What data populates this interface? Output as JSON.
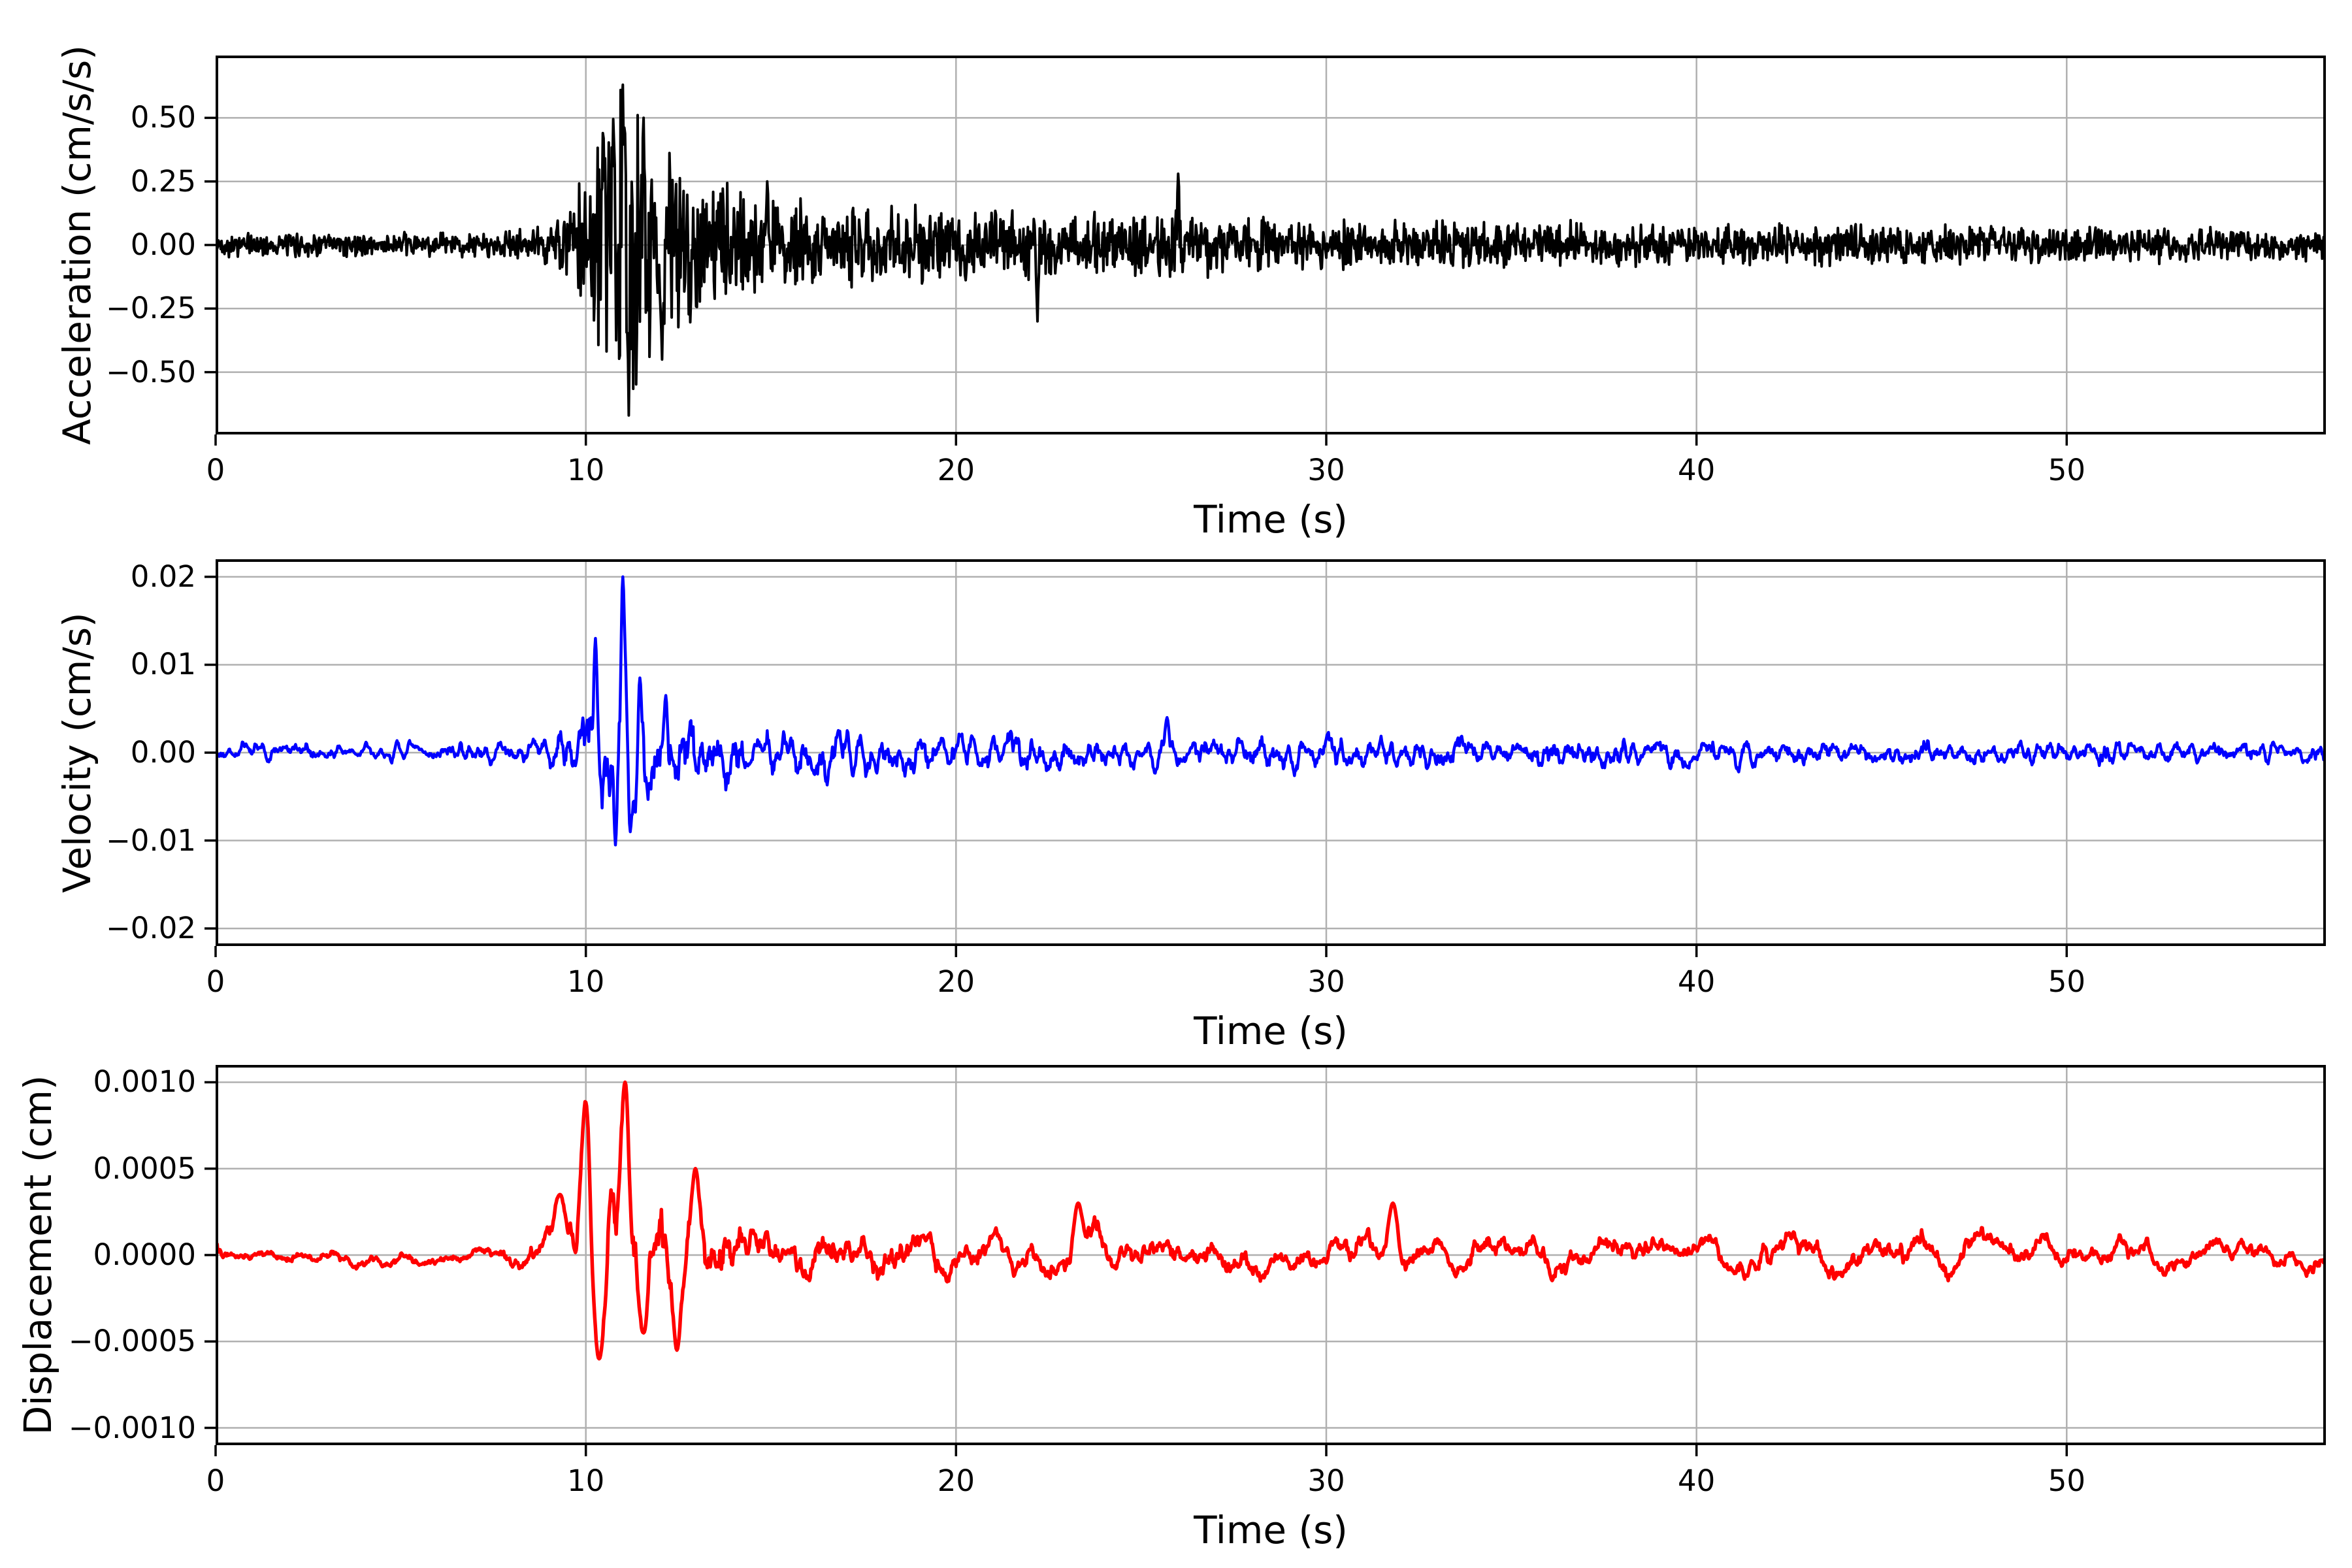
{
  "figure": {
    "background_color": "#ffffff",
    "grid_color": "#b0b0b0",
    "spine_color": "#000000",
    "text_color": "#000000",
    "grid_on": true
  },
  "chart_data": [
    {
      "type": "line",
      "series_name": "acceleration",
      "color": "#000000",
      "xlabel": "Time (s)",
      "ylabel": "Acceleration (cm/s/s)",
      "xlim": [
        0,
        57
      ],
      "ylim": [
        -0.745,
        0.745
      ],
      "xticks": [
        0,
        10,
        20,
        30,
        40,
        50
      ],
      "xtick_labels": [
        "0",
        "10",
        "20",
        "30",
        "40",
        "50"
      ],
      "yticks": [
        0.5,
        0.25,
        0.0,
        -0.25,
        -0.5
      ],
      "ytick_labels": [
        "0.50",
        "0.25",
        "0.00",
        "−0.25",
        "−0.50"
      ],
      "signal": {
        "dt": 0.02,
        "seed": 42,
        "smooth": 1,
        "peak_sigma": 1.2,
        "envelope_t": [
          0,
          5,
          7.5,
          8.5,
          9.2,
          9.7,
          10.2,
          10.6,
          11,
          11.4,
          11.9,
          12.4,
          13,
          14,
          15.5,
          17,
          19,
          21,
          24,
          27,
          30,
          34,
          38,
          43,
          48,
          53,
          57
        ],
        "envelope_amp": [
          0.05,
          0.05,
          0.055,
          0.07,
          0.11,
          0.2,
          0.4,
          0.55,
          0.65,
          0.58,
          0.45,
          0.38,
          0.3,
          0.23,
          0.19,
          0.17,
          0.16,
          0.15,
          0.14,
          0.13,
          0.11,
          0.1,
          0.09,
          0.085,
          0.08,
          0.075,
          0.07
        ],
        "peaks": [
          {
            "t": 10.45,
            "v": 0.44
          },
          {
            "t": 11.0,
            "v": 0.63
          },
          {
            "t": 11.15,
            "v": -0.67
          },
          {
            "t": 11.55,
            "v": 0.5
          },
          {
            "t": 12.05,
            "v": -0.45
          },
          {
            "t": 14.9,
            "v": 0.25
          },
          {
            "t": 22.2,
            "v": -0.3
          },
          {
            "t": 26.0,
            "v": 0.28
          }
        ]
      }
    },
    {
      "type": "line",
      "series_name": "velocity",
      "color": "#0000ff",
      "xlabel": "Time (s)",
      "ylabel": "Velocity (cm/s)",
      "xlim": [
        0,
        57
      ],
      "ylim": [
        -0.022,
        0.022
      ],
      "xticks": [
        0,
        10,
        20,
        30,
        40,
        50
      ],
      "xtick_labels": [
        "0",
        "10",
        "20",
        "30",
        "40",
        "50"
      ],
      "yticks": [
        0.02,
        0.01,
        0.0,
        -0.01,
        -0.02
      ],
      "ytick_labels": [
        "0.02",
        "0.01",
        "0.00",
        "−0.01",
        "−0.02"
      ],
      "signal": {
        "dt": 0.02,
        "seed": 7,
        "smooth": 7,
        "peak_sigma": 2.2,
        "envelope_t": [
          0,
          6,
          8,
          8.8,
          9.3,
          9.8,
          10.2,
          10.6,
          11,
          11.4,
          12,
          12.6,
          13.5,
          15,
          17,
          20,
          24,
          28,
          33,
          40,
          48,
          57
        ],
        "envelope_amp": [
          0.0012,
          0.0013,
          0.0016,
          0.002,
          0.0035,
          0.006,
          0.009,
          0.008,
          0.011,
          0.007,
          0.0065,
          0.006,
          0.005,
          0.004,
          0.0035,
          0.003,
          0.0028,
          0.0025,
          0.0022,
          0.002,
          0.0018,
          0.0017
        ],
        "peaks": [
          {
            "t": 10.25,
            "v": 0.013
          },
          {
            "t": 10.8,
            "v": -0.0105
          },
          {
            "t": 11.0,
            "v": 0.02
          },
          {
            "t": 11.2,
            "v": -0.009
          },
          {
            "t": 11.45,
            "v": 0.0085
          },
          {
            "t": 12.15,
            "v": 0.0065
          },
          {
            "t": 25.7,
            "v": 0.004
          }
        ]
      }
    },
    {
      "type": "line",
      "series_name": "displacement",
      "color": "#ff0000",
      "xlabel": "Time (s)",
      "ylabel": "Displacement (cm)",
      "xlim": [
        0,
        57
      ],
      "ylim": [
        -0.0011,
        0.0011
      ],
      "xticks": [
        0,
        10,
        20,
        30,
        40,
        50
      ],
      "xtick_labels": [
        "0",
        "10",
        "20",
        "30",
        "40",
        "50"
      ],
      "yticks": [
        0.001,
        0.0005,
        0.0,
        -0.0005,
        -0.001
      ],
      "ytick_labels": [
        "0.0010",
        "0.0005",
        "0.0000",
        "−0.0005",
        "−0.0010"
      ],
      "signal": {
        "dt": 0.02,
        "seed": 11,
        "smooth": 25,
        "peak_sigma": 6,
        "envelope_t": [
          0,
          5,
          7,
          8.3,
          9,
          9.5,
          10,
          10.4,
          10.8,
          11.1,
          11.5,
          12,
          12.6,
          13.3,
          14,
          15,
          16.5,
          18,
          20,
          23,
          27,
          32,
          38,
          45,
          52,
          57
        ],
        "envelope_amp": [
          7e-05,
          8e-05,
          9e-05,
          0.00012,
          0.00022,
          0.0003,
          0.0005,
          0.00055,
          0.0007,
          0.00085,
          0.0006,
          0.00055,
          0.0005,
          0.0004,
          0.0003,
          0.00028,
          0.00028,
          0.00025,
          0.0002,
          0.00022,
          0.0002,
          0.00018,
          0.00016,
          0.00018,
          0.00015,
          0.00015
        ],
        "peaks": [
          {
            "t": 9.3,
            "v": 0.00035
          },
          {
            "t": 10.0,
            "v": 0.0009
          },
          {
            "t": 10.35,
            "v": -0.0006
          },
          {
            "t": 11.05,
            "v": 0.001
          },
          {
            "t": 11.55,
            "v": -0.00045
          },
          {
            "t": 12.45,
            "v": -0.00055
          },
          {
            "t": 12.95,
            "v": 0.0005
          },
          {
            "t": 23.3,
            "v": 0.0003
          },
          {
            "t": 31.8,
            "v": 0.0003
          }
        ]
      }
    }
  ]
}
